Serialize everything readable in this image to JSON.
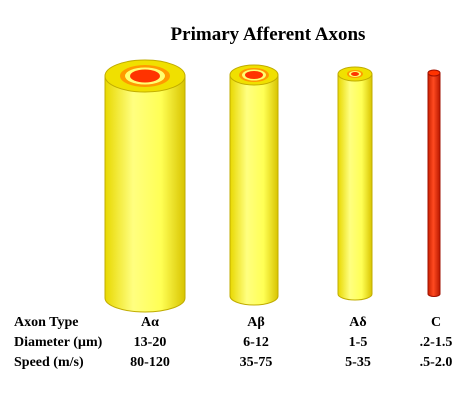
{
  "header": {
    "title": "Primary Afferent Axons"
  },
  "table": {
    "rows": [
      [
        "Axon Type",
        "Aα",
        "Aβ",
        "Aδ",
        "C"
      ],
      [
        "Diameter  (µm)",
        "13-20",
        "6-12",
        "1-5",
        ".2-1.5"
      ],
      [
        "Speed (m/s)",
        "80-120",
        "35-75",
        "5-35",
        ".5-2.0"
      ]
    ]
  }
}
